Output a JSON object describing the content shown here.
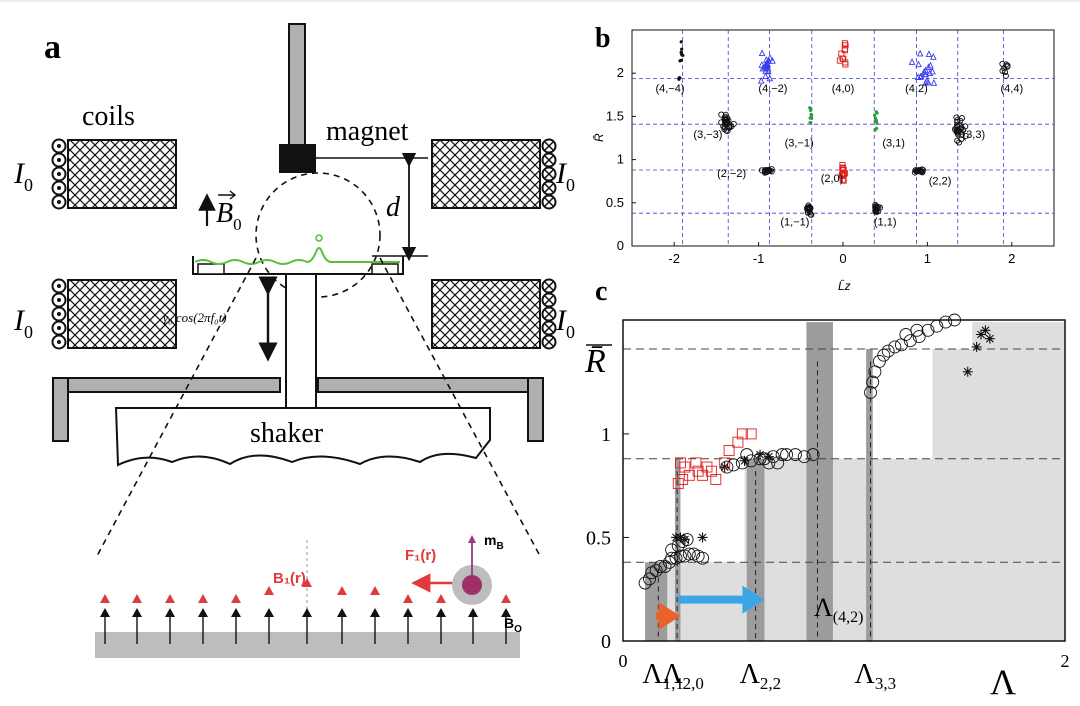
{
  "panels": {
    "a": {
      "label": "a",
      "coils_label": "coils",
      "magnet_label": "magnet",
      "current_label": "I",
      "current_sub": "0",
      "field_label": "B",
      "field_sub": "0",
      "distance_label": "d",
      "drive_label": "γ₀ cos(2πf₀t)",
      "shaker_label": "shaker",
      "zoom": {
        "B1_label": "B₁(r)",
        "F1_label": "F₁(r)",
        "mB_label": "m",
        "mB_sub": "B",
        "B0_label": "B",
        "B0_sub": "O"
      }
    },
    "b": {
      "label": "b"
    },
    "c": {
      "label": "c"
    }
  },
  "chart_data": [
    {
      "panel": "b",
      "type": "scatter",
      "xlabel": "L̄z",
      "ylabel": "R̄",
      "xlim": [
        -2.5,
        2.5
      ],
      "ylim": [
        0,
        2.5
      ],
      "xticks": [
        "-2",
        "-1",
        "0",
        "1",
        "2"
      ],
      "yticks": [
        "0",
        "0.5",
        "1",
        "1.5",
        "2"
      ],
      "xticks_val": [
        -2,
        -1,
        0,
        1,
        2
      ],
      "yticks_val": [
        0,
        0.5,
        1,
        1.5,
        2
      ],
      "hlines": [
        0.38,
        0.88,
        1.41,
        1.94
      ],
      "vlines": [
        -1.9,
        -1.36,
        -0.87,
        -0.37,
        0.37,
        0.87,
        1.36,
        1.9
      ],
      "grid": false,
      "colors": {
        "black": "#111111",
        "blue": "#3b3bf0",
        "red": "#e02020",
        "green": "#2a9d3a",
        "grid": "#3d3dcc"
      },
      "state_labels": [
        {
          "text": "(4,−4)",
          "x": -2.05,
          "y": 1.78
        },
        {
          "text": "(4,−2)",
          "x": -0.83,
          "y": 1.78
        },
        {
          "text": "(4,0)",
          "x": 0.0,
          "y": 1.78
        },
        {
          "text": "(4,2)",
          "x": 0.87,
          "y": 1.78
        },
        {
          "text": "(4,4)",
          "x": 2.0,
          "y": 1.78
        },
        {
          "text": "(3,−3)",
          "x": -1.6,
          "y": 1.25
        },
        {
          "text": "(3,−1)",
          "x": -0.52,
          "y": 1.15
        },
        {
          "text": "(3,1)",
          "x": 0.6,
          "y": 1.15
        },
        {
          "text": "(3,3)",
          "x": 1.55,
          "y": 1.25
        },
        {
          "text": "(2,−2)",
          "x": -1.32,
          "y": 0.8
        },
        {
          "text": "(2,0)",
          "x": -0.13,
          "y": 0.74
        },
        {
          "text": "(2,2)",
          "x": 1.15,
          "y": 0.71
        },
        {
          "text": "(1,−1)",
          "x": -0.57,
          "y": 0.24
        },
        {
          "text": "(1,1)",
          "x": 0.5,
          "y": 0.24
        }
      ],
      "clusters": [
        {
          "color": "black",
          "marker": "dot",
          "cx": -1.92,
          "cy": 2.2,
          "sx": 0.03,
          "sy": 0.18,
          "n": 8
        },
        {
          "color": "black",
          "marker": "dot",
          "cx": -1.93,
          "cy": 1.95,
          "sx": 0.03,
          "sy": 0.02,
          "n": 3
        },
        {
          "color": "blue",
          "marker": "tri",
          "cx": -0.9,
          "cy": 2.05,
          "sx": 0.12,
          "sy": 0.15,
          "n": 20
        },
        {
          "color": "red",
          "marker": "sq",
          "cx": 0.0,
          "cy": 2.18,
          "sx": 0.06,
          "sy": 0.18,
          "n": 10
        },
        {
          "color": "blue",
          "marker": "tri",
          "cx": 0.95,
          "cy": 2.05,
          "sx": 0.13,
          "sy": 0.15,
          "n": 20
        },
        {
          "color": "black",
          "marker": "ring",
          "cx": 1.95,
          "cy": 2.05,
          "sx": 0.05,
          "sy": 0.08,
          "n": 8
        },
        {
          "color": "black",
          "marker": "ring",
          "cx": -1.38,
          "cy": 1.42,
          "sx": 0.06,
          "sy": 0.1,
          "n": 28
        },
        {
          "color": "green",
          "marker": "dot",
          "cx": -0.38,
          "cy": 1.47,
          "sx": 0.02,
          "sy": 0.1,
          "n": 10
        },
        {
          "color": "green",
          "marker": "dot",
          "cx": 0.38,
          "cy": 1.47,
          "sx": 0.02,
          "sy": 0.1,
          "n": 10
        },
        {
          "color": "black",
          "marker": "ring",
          "cx": 1.38,
          "cy": 1.38,
          "sx": 0.06,
          "sy": 0.12,
          "n": 28
        },
        {
          "color": "black",
          "marker": "ring",
          "cx": -0.9,
          "cy": 0.87,
          "sx": 0.05,
          "sy": 0.02,
          "n": 16
        },
        {
          "color": "red",
          "marker": "sq",
          "cx": 0.0,
          "cy": 0.85,
          "sx": 0.03,
          "sy": 0.1,
          "n": 14
        },
        {
          "color": "black",
          "marker": "ring",
          "cx": 0.9,
          "cy": 0.87,
          "sx": 0.05,
          "sy": 0.02,
          "n": 16
        },
        {
          "color": "black",
          "marker": "ring",
          "cx": -0.4,
          "cy": 0.43,
          "sx": 0.03,
          "sy": 0.05,
          "n": 18
        },
        {
          "color": "black",
          "marker": "ring",
          "cx": 0.4,
          "cy": 0.43,
          "sx": 0.03,
          "sy": 0.05,
          "n": 18
        }
      ]
    },
    {
      "panel": "c",
      "type": "scatter",
      "xlabel": "Λ",
      "ylabel": "R̄",
      "xlim": [
        0,
        2
      ],
      "ylim": [
        0,
        1.55
      ],
      "xticks": [
        "0",
        "2"
      ],
      "xticks_val": [
        0,
        2
      ],
      "yticks": [
        "0",
        "0.5",
        "1"
      ],
      "yticks_val": [
        0,
        0.5,
        1
      ],
      "hlines": [
        0.38,
        0.88,
        1.41
      ],
      "grid": false,
      "colors": {
        "light": "#dedede",
        "dark": "#9c9c9c",
        "orange": "#e8622a",
        "blue": "#3aa6e6",
        "red": "#e02020",
        "black": "#111111"
      },
      "light_bands": [
        {
          "x0": 0.1,
          "x1": 2.0,
          "top": 0.38
        },
        {
          "x0": 0.55,
          "x1": 2.0,
          "top": 0.88
        },
        {
          "x0": 1.4,
          "x1": 2.0,
          "top": 1.41
        },
        {
          "x0": 1.58,
          "x1": 2.0,
          "top": 1.54
        }
      ],
      "dark_bands": [
        {
          "x0": 0.1,
          "x1": 0.2,
          "top": 0.38
        },
        {
          "x0": 0.235,
          "x1": 0.26,
          "top": 0.88
        },
        {
          "x0": 0.56,
          "x1": 0.64,
          "top": 0.88
        },
        {
          "x0": 0.83,
          "x1": 0.95,
          "top": 1.54
        },
        {
          "x0": 1.1,
          "x1": 1.13,
          "top": 1.41
        }
      ],
      "dashed_v": [
        {
          "x": 0.16,
          "top": 0.35
        },
        {
          "x": 0.245,
          "top": 0.82
        },
        {
          "x": 0.6,
          "top": 0.82
        },
        {
          "x": 0.88,
          "top": 1.35
        },
        {
          "x": 1.12,
          "top": 1.35
        }
      ],
      "lambda_labels": [
        {
          "sym": "Λ",
          "sub": "1,1",
          "x": 0.16
        },
        {
          "sym": "Λ",
          "sub": "2,0",
          "x": 0.25
        },
        {
          "sym": "Λ",
          "sub": "2,2",
          "x": 0.6
        },
        {
          "sym": "Λ",
          "sub": "3,3",
          "x": 1.12
        }
      ],
      "inline_label": {
        "sym": "Λ",
        "sub": "(4,2)",
        "x": 0.9,
        "y": 0.12
      },
      "arrows": [
        {
          "color": "orange",
          "x0": 0.15,
          "x1": 0.26,
          "y": 0.12
        },
        {
          "color": "blue",
          "x0": 0.25,
          "x1": 0.64,
          "y": 0.2
        }
      ],
      "series": [
        {
          "marker": "ring",
          "color": "black",
          "points": [
            [
              0.1,
              0.28
            ],
            [
              0.12,
              0.3
            ],
            [
              0.13,
              0.33
            ],
            [
              0.15,
              0.34
            ],
            [
              0.17,
              0.36
            ],
            [
              0.19,
              0.36
            ],
            [
              0.21,
              0.38
            ],
            [
              0.22,
              0.4
            ],
            [
              0.24,
              0.4
            ],
            [
              0.26,
              0.41
            ],
            [
              0.28,
              0.41
            ],
            [
              0.3,
              0.42
            ],
            [
              0.32,
              0.42
            ],
            [
              0.34,
              0.41
            ],
            [
              0.36,
              0.4
            ],
            [
              0.22,
              0.44
            ],
            [
              0.25,
              0.46
            ],
            [
              0.27,
              0.48
            ],
            [
              0.29,
              0.49
            ]
          ]
        },
        {
          "marker": "star",
          "color": "black",
          "points": [
            [
              0.24,
              0.5
            ],
            [
              0.26,
              0.5
            ],
            [
              0.28,
              0.49
            ],
            [
              0.36,
              0.5
            ],
            [
              0.46,
              0.84
            ],
            [
              0.55,
              0.87
            ],
            [
              0.62,
              0.9
            ],
            [
              0.66,
              0.89
            ],
            [
              1.62,
              1.48
            ],
            [
              1.6,
              1.42
            ],
            [
              1.56,
              1.3
            ],
            [
              1.66,
              1.46
            ],
            [
              1.64,
              1.5
            ]
          ]
        },
        {
          "marker": "sq",
          "color": "red",
          "points": [
            [
              0.25,
              0.76
            ],
            [
              0.27,
              0.78
            ],
            [
              0.3,
              0.8
            ],
            [
              0.34,
              0.82
            ],
            [
              0.28,
              0.84
            ],
            [
              0.33,
              0.86
            ],
            [
              0.36,
              0.8
            ],
            [
              0.38,
              0.84
            ],
            [
              0.4,
              0.82
            ],
            [
              0.26,
              0.86
            ],
            [
              0.42,
              0.78
            ],
            [
              0.46,
              0.86
            ],
            [
              0.48,
              0.92
            ],
            [
              0.52,
              0.96
            ],
            [
              0.54,
              1.0
            ],
            [
              0.58,
              1.0
            ]
          ]
        },
        {
          "marker": "ring",
          "color": "black",
          "points": [
            [
              0.47,
              0.84
            ],
            [
              0.5,
              0.85
            ],
            [
              0.54,
              0.86
            ],
            [
              0.58,
              0.87
            ],
            [
              0.62,
              0.88
            ],
            [
              0.64,
              0.88
            ],
            [
              0.68,
              0.89
            ],
            [
              0.72,
              0.9
            ],
            [
              0.74,
              0.9
            ],
            [
              0.78,
              0.9
            ],
            [
              0.82,
              0.89
            ],
            [
              0.86,
              0.9
            ],
            [
              0.56,
              0.9
            ],
            [
              0.66,
              0.86
            ],
            [
              0.7,
              0.86
            ]
          ]
        },
        {
          "marker": "ring",
          "color": "black",
          "points": [
            [
              1.12,
              1.2
            ],
            [
              1.13,
              1.25
            ],
            [
              1.14,
              1.3
            ],
            [
              1.16,
              1.35
            ],
            [
              1.18,
              1.38
            ],
            [
              1.2,
              1.4
            ],
            [
              1.23,
              1.42
            ],
            [
              1.26,
              1.43
            ],
            [
              1.3,
              1.45
            ],
            [
              1.34,
              1.47
            ],
            [
              1.38,
              1.5
            ],
            [
              1.42,
              1.52
            ],
            [
              1.46,
              1.54
            ],
            [
              1.5,
              1.55
            ],
            [
              1.28,
              1.48
            ],
            [
              1.33,
              1.5
            ]
          ]
        }
      ]
    }
  ]
}
